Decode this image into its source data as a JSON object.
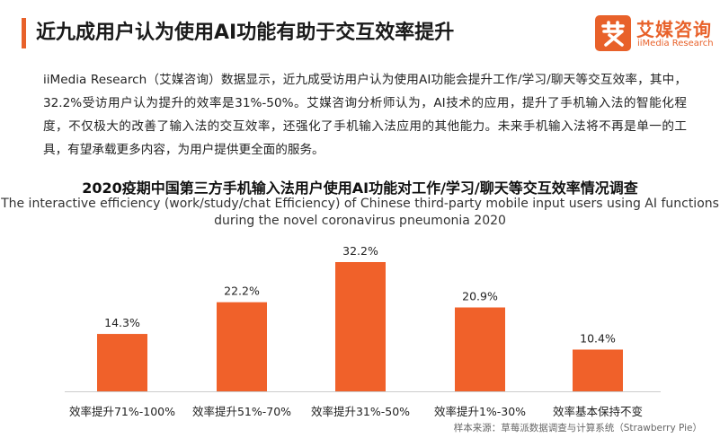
{
  "header": {
    "title": "近九成用户认为使用AI功能有助于交互效率提升",
    "logo": {
      "cn": "艾媒咨询",
      "en": "iiMedia Research",
      "mark": "艾"
    }
  },
  "body_text": "iiMedia Research（艾媒咨询）数据显示，近九成受访用户认为使用AI功能会提升工作/学习/聊天等交互效率，其中，32.2%受访用户认为提升的效率是31%-50%。艾媒咨询分析师认为，AI技术的应用，提升了手机输入法的智能化程度，不仅极大的改善了输入法的交互效率，还强化了手机输入法应用的其他能力。未来手机输入法将不再是单一的工具，有望承载更多内容，为用户提供更全面的服务。",
  "colors": {
    "accent": "#e8612a",
    "bar": "#f0612a",
    "axis": "#cccccc"
  },
  "chart_data": {
    "type": "bar",
    "title": "2020疫期中国第三方手机输入法用户使用AI功能对工作/学习/聊天等交互效率情况调查",
    "subtitle": "The interactive efficiency (work/study/chat Efficiency) of Chinese third-party mobile input users using AI functions during  the novel coronavirus pneumonia 2020",
    "categories": [
      "效率提升71%-100%",
      "效率提升51%-70%",
      "效率提升31%-50%",
      "效率提升1%-30%",
      "效率基本保持不变"
    ],
    "values": [
      14.3,
      22.2,
      32.2,
      20.9,
      10.4
    ],
    "value_labels": [
      "14.3%",
      "22.2%",
      "32.2%",
      "20.9%",
      "10.4%"
    ],
    "unit": "%",
    "ylim": [
      0,
      32.2
    ],
    "grid": false,
    "legend": "none"
  },
  "source": "样本来源：草莓派数据调查与计算系统（Strawberry Pie）"
}
